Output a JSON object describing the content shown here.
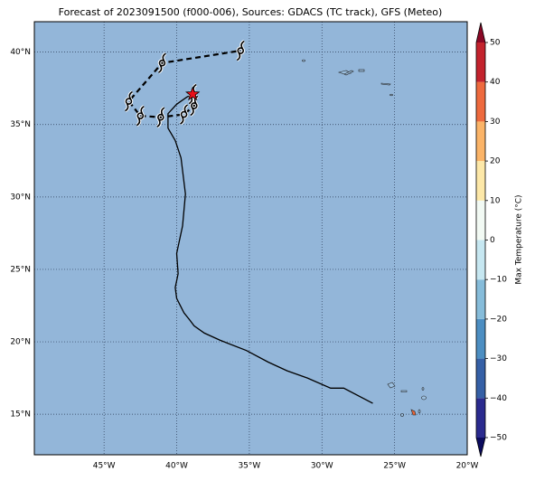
{
  "chart_data": {
    "type": "map",
    "title": "Forecast of 2023091500 (f000-006), Sources: GDACS (TC track), GFS (Meteo)",
    "background": "#93b6d9",
    "grid": true,
    "xlim": [
      -49.8,
      -20
    ],
    "ylim": [
      12.2,
      42.1
    ],
    "xticks": [
      {
        "value": -45,
        "label": "45°W"
      },
      {
        "value": -40,
        "label": "40°W"
      },
      {
        "value": -35,
        "label": "35°W"
      },
      {
        "value": -30,
        "label": "30°W"
      },
      {
        "value": -25,
        "label": "25°W"
      },
      {
        "value": -20,
        "label": "20°W"
      }
    ],
    "yticks": [
      {
        "value": 15,
        "label": "15°N"
      },
      {
        "value": 20,
        "label": "20°N"
      },
      {
        "value": 25,
        "label": "25°N"
      },
      {
        "value": 30,
        "label": "30°N"
      },
      {
        "value": 35,
        "label": "35°N"
      },
      {
        "value": 40,
        "label": "40°N"
      }
    ],
    "series": [
      {
        "style": "solid",
        "color": "#000000",
        "end_marker": "star",
        "end_marker_color": "#e8101a",
        "x": [
          -26.5,
          -28.5,
          -29.4,
          -31.0,
          -32.4,
          -33.7,
          -35.2,
          -37.0,
          -38.1,
          -38.8,
          -39.1,
          -39.5,
          -40.0,
          -40.1,
          -39.9,
          -40.0,
          -39.6,
          -39.4,
          -39.7,
          -40.1,
          -40.6,
          -40.6,
          -40.0,
          -39.3,
          -38.9
        ],
        "values": [
          15.75,
          16.8,
          16.8,
          17.5,
          18.0,
          18.6,
          19.4,
          20.1,
          20.6,
          21.1,
          21.5,
          22.0,
          23.0,
          23.75,
          24.7,
          26.1,
          28.0,
          30.2,
          32.7,
          33.9,
          34.75,
          35.75,
          36.4,
          36.9,
          37.1
        ]
      },
      {
        "style": "dashed",
        "color": "#000000",
        "marker": "hurricane",
        "x": [
          -38.9,
          -38.8,
          -39.5,
          -41.1,
          -42.5,
          -43.3,
          -41.0,
          -35.6
        ],
        "values": [
          37.1,
          36.3,
          35.7,
          35.5,
          35.6,
          36.6,
          39.25,
          40.1
        ]
      }
    ],
    "colorbar": {
      "label": "Max Temperature (°C)",
      "lim": [
        -50,
        50
      ],
      "extend": "both",
      "ticks": [
        {
          "value": -50,
          "label": "−50"
        },
        {
          "value": -40,
          "label": "−40"
        },
        {
          "value": -30,
          "label": "−30"
        },
        {
          "value": -20,
          "label": "−20"
        },
        {
          "value": -10,
          "label": "−10"
        },
        0,
        10,
        20,
        30,
        40,
        50
      ],
      "colors": [
        "#0b0b5e",
        "#2a2a8e",
        "#3560a6",
        "#4c8ec2",
        "#86bcda",
        "#c6e7f1",
        "#f2faf4",
        "#fde8a8",
        "#fbb468",
        "#ee6a3e",
        "#c3232d",
        "#8a0826"
      ]
    }
  }
}
